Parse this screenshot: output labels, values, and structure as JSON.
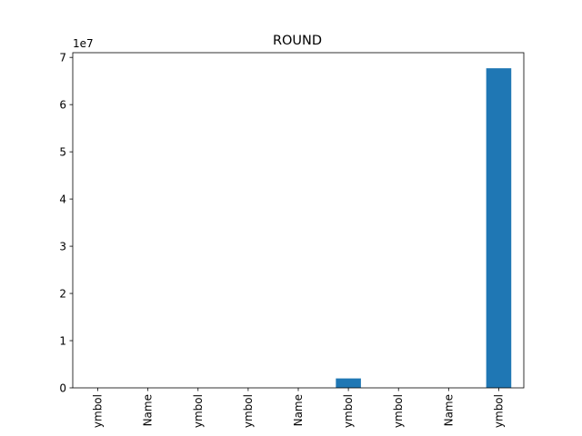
{
  "chart_data": {
    "type": "bar",
    "title": "ROUND",
    "xlabel": "",
    "ylabel": "",
    "y_multiplier_label": "1e7",
    "y_scale": 10000000,
    "categories": [
      "ymbol",
      "Name",
      "ymbol",
      "ymbol",
      "Name",
      "ymbol",
      "ymbol",
      "Name",
      "ymbol"
    ],
    "values": [
      0,
      0,
      0,
      0,
      0,
      2000000,
      0,
      0,
      67700000
    ],
    "ylim": [
      0,
      71000000
    ],
    "yticks": [
      0,
      1,
      2,
      3,
      4,
      5,
      6,
      7
    ],
    "grid": false,
    "legend": "none",
    "bar_color": "#1f77b4"
  }
}
